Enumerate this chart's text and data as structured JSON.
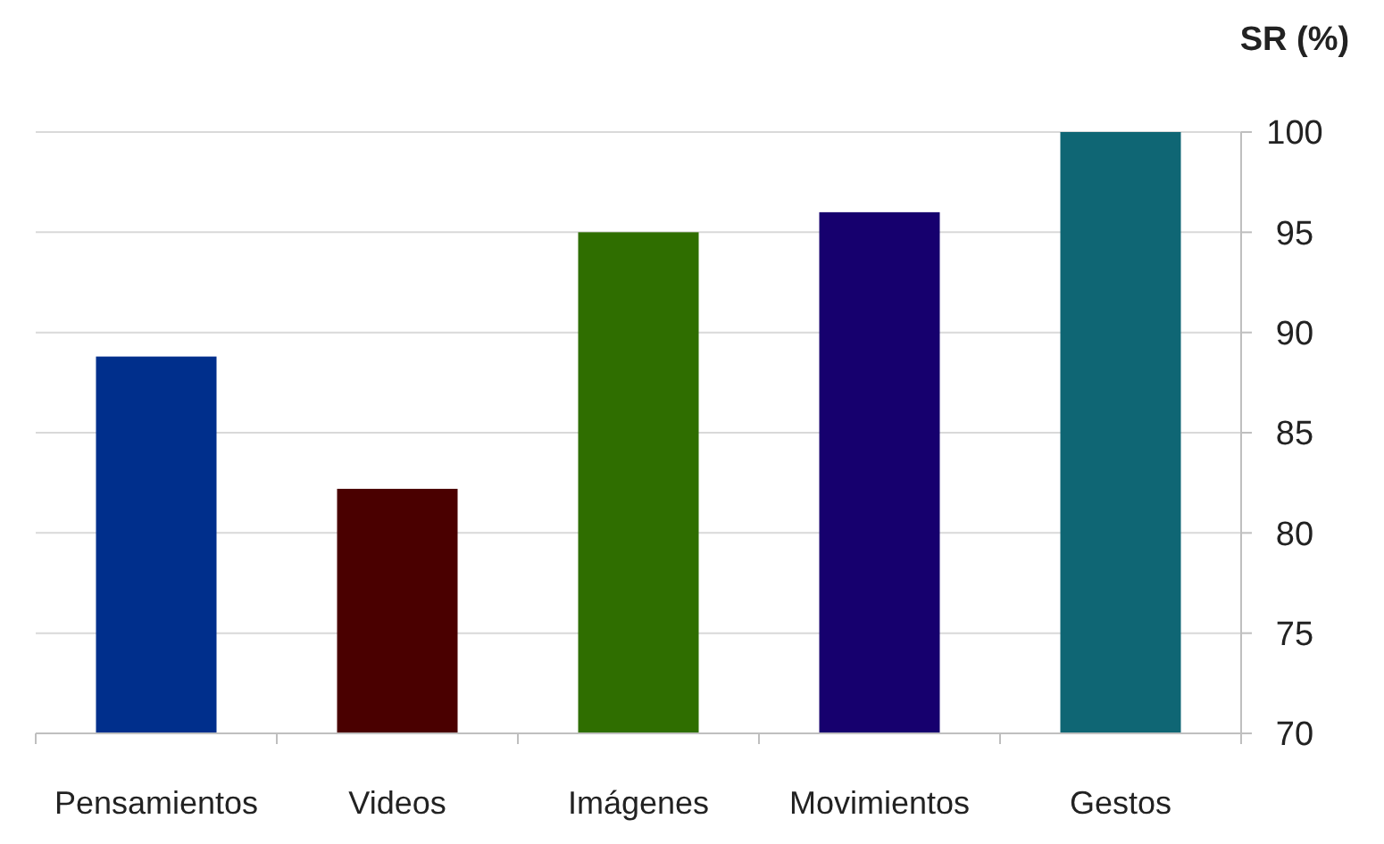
{
  "chart_data": {
    "type": "bar",
    "ylabel": "SR (%)",
    "categories": [
      "Pensamientos",
      "Videos",
      "Imágenes",
      "Movimientos",
      "Gestos"
    ],
    "values": [
      88.8,
      82.2,
      95,
      96,
      100
    ],
    "colors": [
      "#002f8c",
      "#4a0000",
      "#2f6e00",
      "#16006e",
      "#0f6674"
    ],
    "ylim": [
      70,
      100
    ],
    "yticks": [
      70,
      75,
      80,
      85,
      90,
      95,
      100
    ],
    "grid": "y"
  }
}
